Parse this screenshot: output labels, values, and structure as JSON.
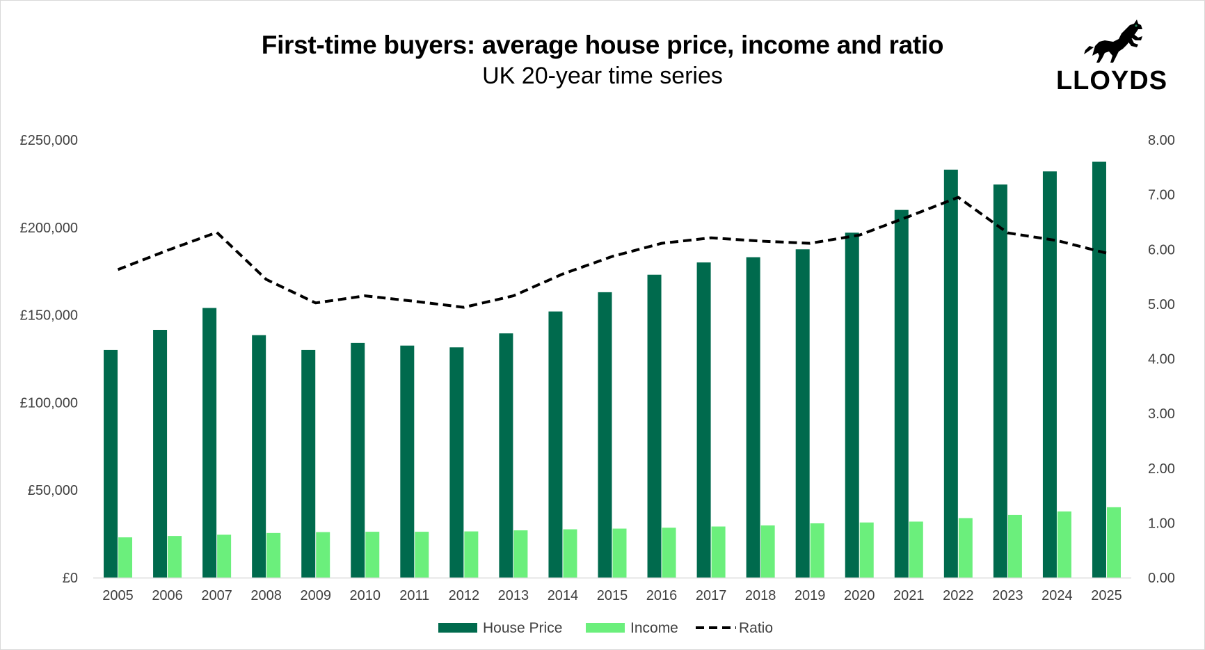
{
  "header": {
    "title": "First-time buyers: average house price, income and ratio",
    "subtitle": "UK 20-year time series"
  },
  "logo": {
    "wordmark": "LLOYDS",
    "icon": "black-horse-icon"
  },
  "colors": {
    "house_price": "#006a4d",
    "income": "#6bef7c",
    "ratio": "#000000",
    "axis": "#d9d9d9",
    "text": "#404040"
  },
  "chart_data": {
    "type": "bar",
    "categories": [
      "2005",
      "2006",
      "2007",
      "2008",
      "2009",
      "2010",
      "2011",
      "2012",
      "2013",
      "2014",
      "2015",
      "2016",
      "2017",
      "2018",
      "2019",
      "2020",
      "2021",
      "2022",
      "2023",
      "2024",
      "2025"
    ],
    "series": [
      {
        "name": "House Price",
        "type": "bar",
        "axis": "left",
        "values": [
          130000,
          141500,
          154000,
          138500,
          130000,
          134000,
          132500,
          131500,
          139500,
          152000,
          163000,
          173000,
          180000,
          183000,
          187500,
          197000,
          210000,
          233000,
          224500,
          232000,
          237500
        ]
      },
      {
        "name": "Income",
        "type": "bar",
        "axis": "left",
        "values": [
          23000,
          23800,
          24500,
          25500,
          26000,
          26200,
          26200,
          26400,
          27000,
          27600,
          28000,
          28500,
          29200,
          29800,
          31000,
          31500,
          32000,
          34000,
          35800,
          37800,
          40200
        ]
      },
      {
        "name": "Ratio",
        "type": "line",
        "axis": "right",
        "style": "dashed",
        "values": [
          5.63,
          5.98,
          6.31,
          5.45,
          5.02,
          5.15,
          5.05,
          4.94,
          5.15,
          5.55,
          5.87,
          6.11,
          6.21,
          6.15,
          6.11,
          6.26,
          6.6,
          6.95,
          6.3,
          6.16,
          5.93
        ]
      }
    ],
    "y_left": {
      "min": 0,
      "max": 250000,
      "ticks": [
        {
          "value": 0,
          "label": "£0"
        },
        {
          "value": 50000,
          "label": "£50,000"
        },
        {
          "value": 100000,
          "label": "£100,000"
        },
        {
          "value": 150000,
          "label": "£150,000"
        },
        {
          "value": 200000,
          "label": "£200,000"
        },
        {
          "value": 250000,
          "label": "£250,000"
        }
      ]
    },
    "y_right": {
      "min": 0,
      "max": 8,
      "ticks": [
        {
          "value": 0,
          "label": "0.00"
        },
        {
          "value": 1,
          "label": "1.00"
        },
        {
          "value": 2,
          "label": "2.00"
        },
        {
          "value": 3,
          "label": "3.00"
        },
        {
          "value": 4,
          "label": "4.00"
        },
        {
          "value": 5,
          "label": "5.00"
        },
        {
          "value": 6,
          "label": "6.00"
        },
        {
          "value": 7,
          "label": "7.00"
        },
        {
          "value": 8,
          "label": "8.00"
        }
      ]
    },
    "grid": false,
    "legend_position": "bottom-center"
  }
}
